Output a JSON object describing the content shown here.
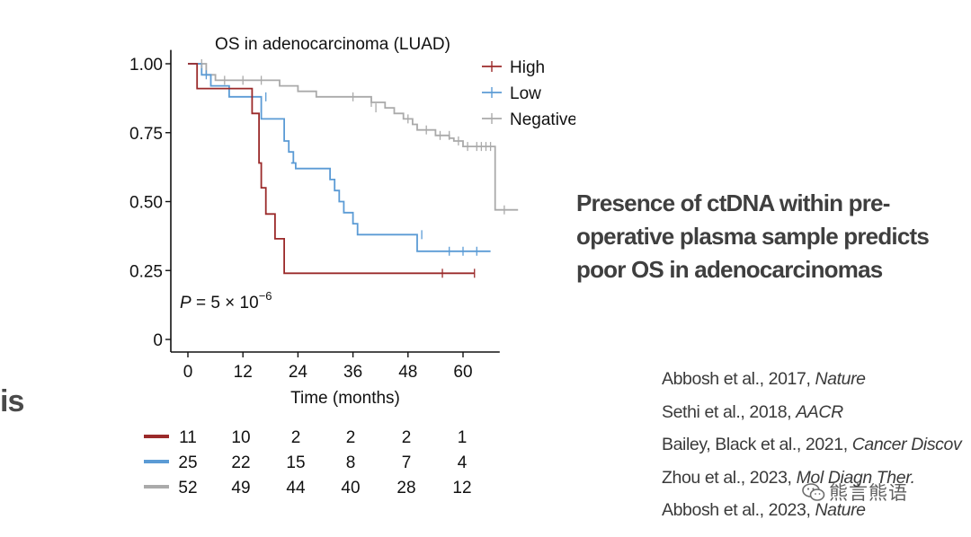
{
  "fragment_text": "is",
  "headline_lines": [
    "Presence of ctDNA within pre-",
    "operative plasma sample predicts",
    "poor OS in adenocarcinomas"
  ],
  "references": [
    {
      "authors": "Abbosh et al., 2017, ",
      "journal": "Nature"
    },
    {
      "authors": "Sethi et al., 2018, ",
      "journal": "AACR"
    },
    {
      "authors": "Bailey, Black et al., 2021, ",
      "journal": "Cancer Discov"
    },
    {
      "authors": "Zhou et al., 2023, ",
      "journal": "Mol Diagn Ther."
    },
    {
      "authors": "Abbosh et al., 2023, ",
      "journal": "Nature"
    }
  ],
  "watermark_text": "熊言熊语",
  "chart_data": {
    "type": "line",
    "subtype": "kaplan-meier",
    "title": "OS in adenocarcinoma (LUAD)",
    "xlabel": "Time (months)",
    "ylabel": "",
    "xlim": [
      -4,
      68
    ],
    "ylim": [
      0,
      1.05
    ],
    "x_ticks": [
      0,
      12,
      24,
      36,
      48,
      60
    ],
    "y_ticks": [
      {
        "value": 0,
        "label": "0"
      },
      {
        "value": 0.25,
        "label": "0.25"
      },
      {
        "value": 0.5,
        "label": "0.50"
      },
      {
        "value": 0.75,
        "label": "0.75"
      },
      {
        "value": 1.0,
        "label": "1.00"
      }
    ],
    "legend_position": "top-right",
    "annotation": {
      "prefix": "P",
      "body": " = 5 × 10",
      "exponent": "−6"
    },
    "series": [
      {
        "name": "High",
        "color": "#9b2a2a",
        "steps": [
          [
            0,
            1.0
          ],
          [
            2,
            0.91
          ],
          [
            14,
            0.82
          ],
          [
            15.5,
            0.64
          ],
          [
            16,
            0.55
          ],
          [
            17,
            0.455
          ],
          [
            19,
            0.365
          ],
          [
            21,
            0.24
          ],
          [
            62.5,
            0.24
          ]
        ],
        "censors": [
          [
            55.5,
            0.24
          ],
          [
            62.5,
            0.24
          ]
        ],
        "at_risk": [
          "11",
          "10",
          "2",
          "2",
          "2",
          "1"
        ]
      },
      {
        "name": "Low",
        "color": "#5b9bd5",
        "steps": [
          [
            0,
            1.0
          ],
          [
            3,
            0.96
          ],
          [
            5,
            0.92
          ],
          [
            9,
            0.88
          ],
          [
            16,
            0.8
          ],
          [
            21,
            0.72
          ],
          [
            22,
            0.68
          ],
          [
            23,
            0.64
          ],
          [
            22.5,
            0.64
          ],
          [
            23.5,
            0.62
          ],
          [
            27,
            0.62
          ],
          [
            31,
            0.58
          ],
          [
            32,
            0.54
          ],
          [
            33,
            0.5
          ],
          [
            34,
            0.46
          ],
          [
            36,
            0.42
          ],
          [
            37,
            0.38
          ],
          [
            50,
            0.32
          ],
          [
            66,
            0.32
          ]
        ],
        "censors": [
          [
            4,
            0.96
          ],
          [
            17,
            0.88
          ],
          [
            51,
            0.38
          ],
          [
            57,
            0.32
          ],
          [
            60,
            0.32
          ],
          [
            63,
            0.32
          ]
        ],
        "at_risk": [
          "25",
          "22",
          "15",
          "8",
          "7",
          "4"
        ]
      },
      {
        "name": "Negative",
        "color": "#aaaaaa",
        "steps": [
          [
            0,
            1.0
          ],
          [
            4,
            0.96
          ],
          [
            6,
            0.94
          ],
          [
            20,
            0.92
          ],
          [
            24,
            0.9
          ],
          [
            28,
            0.88
          ],
          [
            40,
            0.86
          ],
          [
            43,
            0.84
          ],
          [
            45,
            0.82
          ],
          [
            47,
            0.8
          ],
          [
            49,
            0.78
          ],
          [
            50,
            0.76
          ],
          [
            54,
            0.74
          ],
          [
            57,
            0.73
          ],
          [
            58,
            0.72
          ],
          [
            60,
            0.7
          ],
          [
            66,
            0.7
          ],
          [
            67,
            0.47
          ],
          [
            72,
            0.47
          ]
        ],
        "censors": [
          [
            3,
            1.0
          ],
          [
            8,
            0.94
          ],
          [
            12,
            0.94
          ],
          [
            16,
            0.94
          ],
          [
            36,
            0.88
          ],
          [
            40,
            0.86
          ],
          [
            41,
            0.84
          ],
          [
            48,
            0.8
          ],
          [
            52,
            0.76
          ],
          [
            55,
            0.74
          ],
          [
            57,
            0.74
          ],
          [
            59,
            0.72
          ],
          [
            61,
            0.7
          ],
          [
            63,
            0.7
          ],
          [
            64,
            0.7
          ],
          [
            65,
            0.7
          ],
          [
            66,
            0.7
          ],
          [
            69,
            0.47
          ]
        ],
        "at_risk": [
          "52",
          "49",
          "44",
          "40",
          "28",
          "12"
        ]
      }
    ]
  }
}
